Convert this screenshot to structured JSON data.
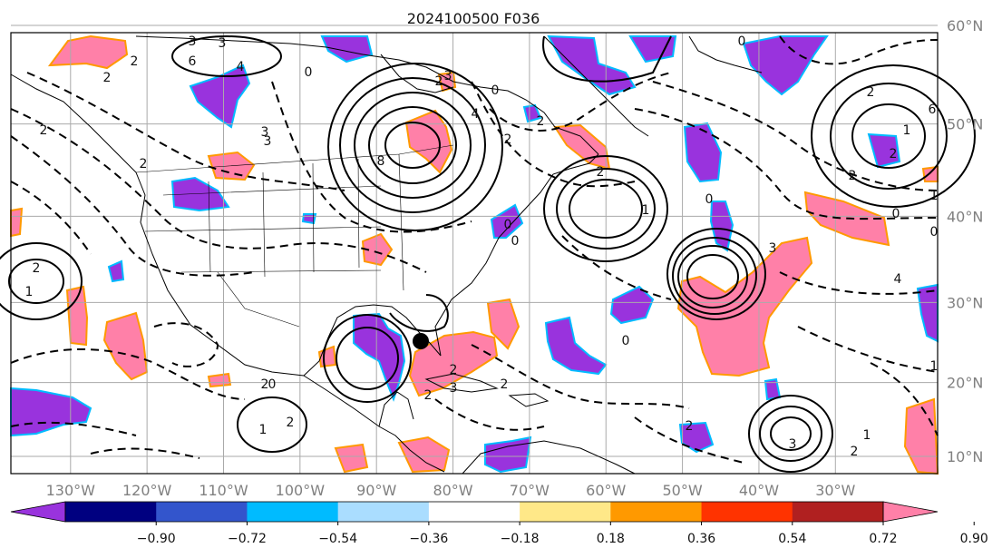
{
  "title": "2024100500 F036",
  "map": {
    "lon_labels": [
      "130°W",
      "120°W",
      "110°W",
      "100°W",
      "90°W",
      "80°W",
      "70°W",
      "60°W",
      "50°W",
      "40°W",
      "30°W"
    ],
    "lat_labels": [
      "60°N",
      "50°N",
      "40°N",
      "30°N",
      "20°N",
      "10°N"
    ],
    "marker": {
      "lon": -86.5,
      "lat": 25
    }
  },
  "contour_labels": [
    "3",
    "2",
    "3",
    "6",
    "4",
    "2",
    "3",
    "2",
    "0",
    "3",
    "2",
    "6",
    "1",
    "0",
    "2",
    "4",
    "2",
    "3",
    "8",
    "0",
    "2",
    "1",
    "2",
    "0",
    "3",
    "2",
    "2",
    "3",
    "1",
    "2",
    "1",
    "2",
    "0",
    "2",
    "4",
    "0",
    "0",
    "0",
    "0",
    "2",
    "2",
    "2",
    "1",
    "0",
    "1",
    "3",
    "2",
    "2",
    "1",
    "2"
  ],
  "colorbar": {
    "labels": [
      "−0.90",
      "−0.72",
      "−0.54",
      "−0.36",
      "−0.18",
      "0.18",
      "0.36",
      "0.54",
      "0.72",
      "0.90"
    ],
    "colors": [
      "#9933dd",
      "#000080",
      "#3355cc",
      "#00bbff",
      "#aaddff",
      "#ffffff",
      "#ffe888",
      "#ff9900",
      "#ff3300",
      "#b02020",
      "#ff80a8"
    ]
  }
}
